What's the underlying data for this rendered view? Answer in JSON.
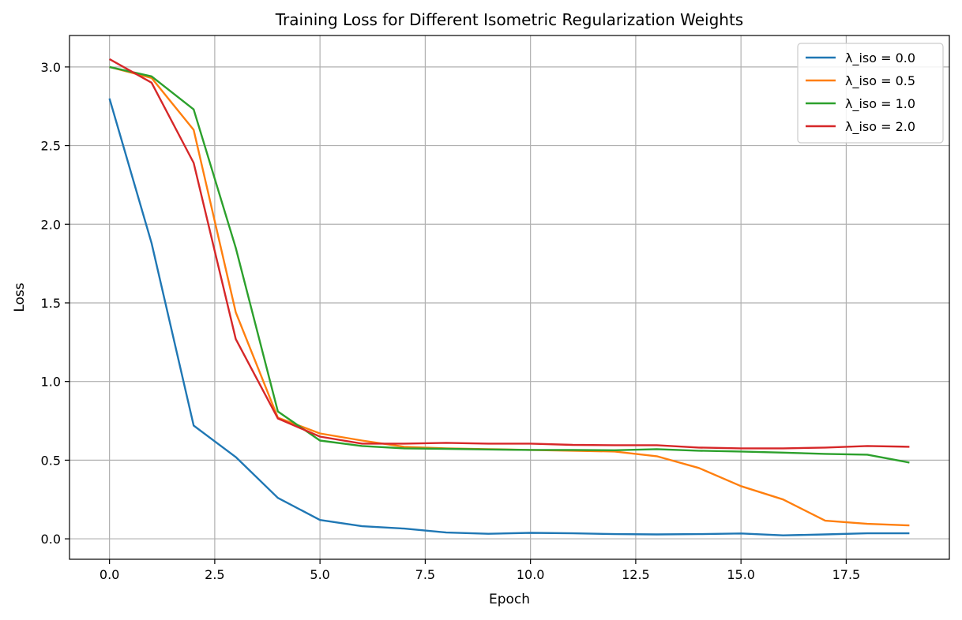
{
  "chart_data": {
    "type": "line",
    "title": "Training Loss for Different Isometric Regularization Weights",
    "xlabel": "Epoch",
    "ylabel": "Loss",
    "xlim": [
      -0.95,
      19.95
    ],
    "ylim": [
      -0.13,
      3.2
    ],
    "xticks": [
      0,
      2.5,
      5,
      7.5,
      10,
      12.5,
      15,
      17.5
    ],
    "xtick_labels": [
      "0.0",
      "2.5",
      "5.0",
      "7.5",
      "10.0",
      "12.5",
      "15.0",
      "17.5"
    ],
    "yticks": [
      0,
      0.5,
      1,
      1.5,
      2,
      2.5,
      3
    ],
    "ytick_labels": [
      "0.0",
      "0.5",
      "1.0",
      "1.5",
      "2.0",
      "2.5",
      "3.0"
    ],
    "grid": true,
    "legend_position": "top-right",
    "x": [
      0,
      1,
      2,
      3,
      4,
      5,
      6,
      7,
      8,
      9,
      10,
      11,
      12,
      13,
      14,
      15,
      16,
      17,
      18,
      19
    ],
    "series": [
      {
        "name": "λ_iso = 0.0",
        "color": "#1f77b4",
        "values": [
          2.8,
          1.88,
          0.72,
          0.52,
          0.26,
          0.12,
          0.08,
          0.065,
          0.04,
          0.032,
          0.038,
          0.035,
          0.03,
          0.028,
          0.03,
          0.034,
          0.022,
          0.028,
          0.035,
          0.035
        ]
      },
      {
        "name": "λ_iso = 0.5",
        "color": "#ff7f0e",
        "values": [
          3.0,
          2.93,
          2.6,
          1.44,
          0.77,
          0.67,
          0.625,
          0.585,
          0.575,
          0.57,
          0.565,
          0.56,
          0.555,
          0.525,
          0.45,
          0.335,
          0.25,
          0.115,
          0.095,
          0.085
        ]
      },
      {
        "name": "λ_iso = 1.0",
        "color": "#2ca02c",
        "values": [
          3.0,
          2.94,
          2.73,
          1.85,
          0.81,
          0.625,
          0.59,
          0.575,
          0.572,
          0.568,
          0.565,
          0.565,
          0.563,
          0.57,
          0.56,
          0.555,
          0.548,
          0.54,
          0.535,
          0.485
        ]
      },
      {
        "name": "λ_iso = 2.0",
        "color": "#d62728",
        "values": [
          3.05,
          2.9,
          2.39,
          1.27,
          0.765,
          0.65,
          0.605,
          0.605,
          0.61,
          0.605,
          0.605,
          0.597,
          0.595,
          0.595,
          0.58,
          0.575,
          0.575,
          0.58,
          0.59,
          0.585
        ]
      }
    ]
  }
}
